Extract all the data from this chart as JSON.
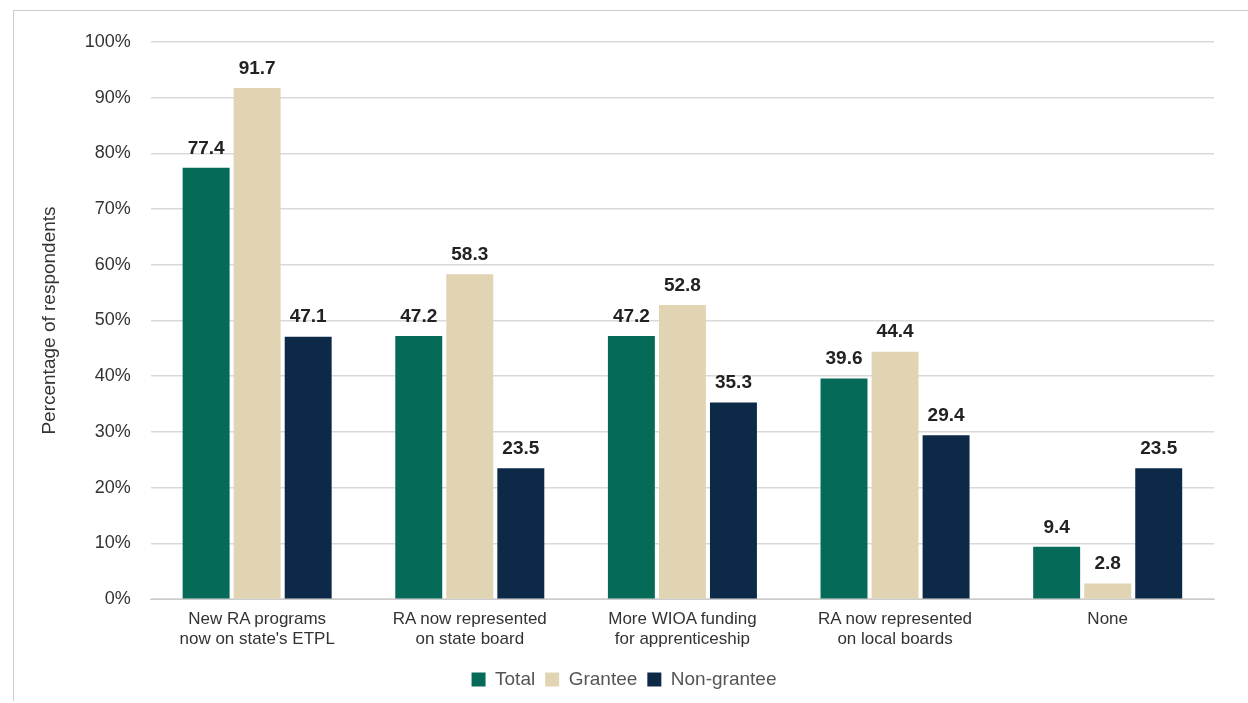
{
  "chart_data": {
    "type": "bar",
    "ylabel": "Percentage of respondents",
    "categories": [
      "New RA programs now on state's ETPL",
      "RA now represented on state board",
      "More WIOA funding for apprenticeship",
      "RA now represented on local boards",
      "None"
    ],
    "series": [
      {
        "name": "Total",
        "color": "#066a59",
        "values": [
          77.4,
          47.2,
          47.2,
          39.6,
          9.4
        ]
      },
      {
        "name": "Grantee",
        "color": "#e0d4b3",
        "values": [
          91.7,
          58.3,
          52.8,
          44.4,
          2.8
        ]
      },
      {
        "name": "Non-grantee",
        "color": "#0c2947",
        "values": [
          47.1,
          23.5,
          35.3,
          29.4,
          23.5
        ]
      }
    ],
    "ylim": [
      0,
      100
    ],
    "yticks": [
      {
        "value": 0,
        "label": "0%"
      },
      {
        "value": 10,
        "label": "10%"
      },
      {
        "value": 20,
        "label": "20%"
      },
      {
        "value": 30,
        "label": "30%"
      },
      {
        "value": 40,
        "label": "40%"
      },
      {
        "value": 50,
        "label": "50%"
      },
      {
        "value": 60,
        "label": "60%"
      },
      {
        "value": 70,
        "label": "70%"
      },
      {
        "value": 80,
        "label": "80%"
      },
      {
        "value": 90,
        "label": "90%"
      },
      {
        "value": 100,
        "label": "100%"
      }
    ],
    "grid": "y",
    "legend": "bottom",
    "data_labels": true
  }
}
